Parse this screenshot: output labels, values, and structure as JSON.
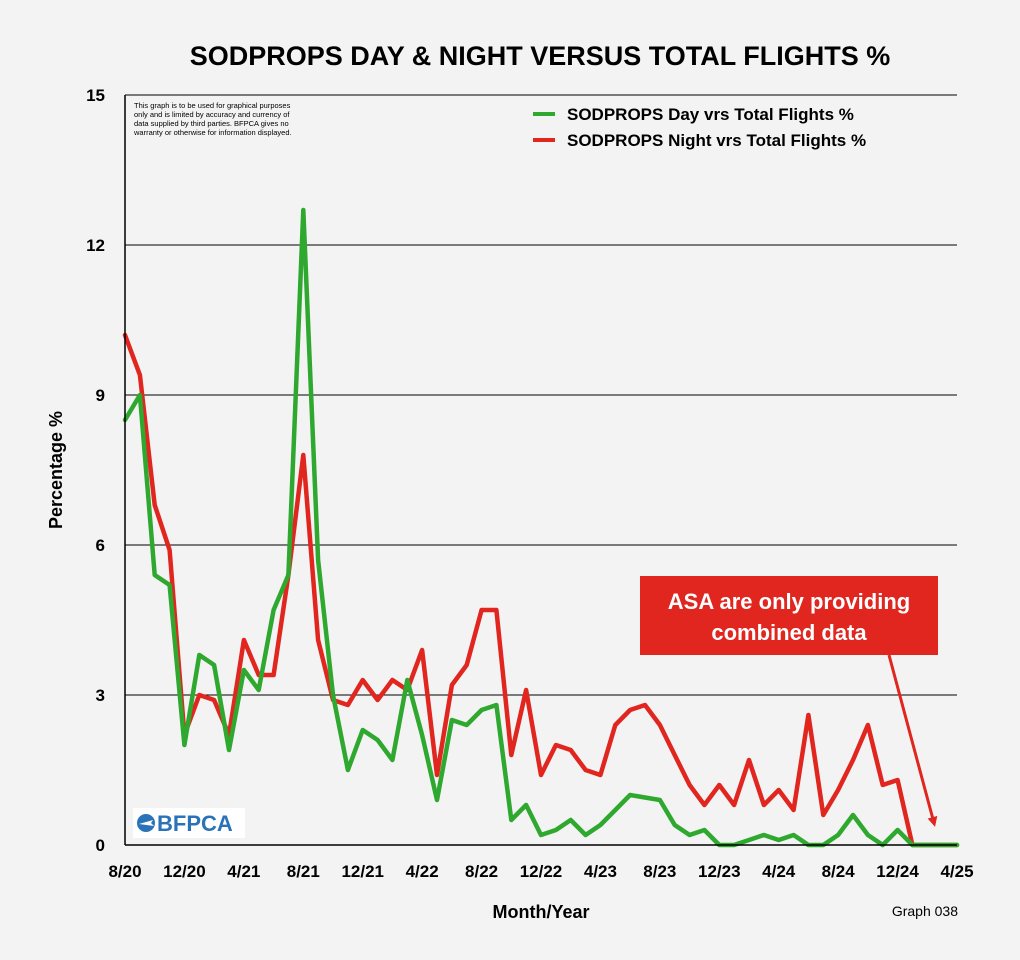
{
  "chart_data": {
    "type": "line",
    "title": "SODPROPS DAY & NIGHT VERSUS TOTAL FLIGHTS %",
    "xlabel": "Month/Year",
    "ylabel": "Percentage %",
    "ylim": [
      0,
      15
    ],
    "yticks": [
      "0",
      "3",
      "6",
      "9",
      "12",
      "15"
    ],
    "xticks": [
      {
        "label": "8/20",
        "i": 0
      },
      {
        "label": "12/20",
        "i": 4
      },
      {
        "label": "4/21",
        "i": 8
      },
      {
        "label": "8/21",
        "i": 12
      },
      {
        "label": "12/21",
        "i": 16
      },
      {
        "label": "4/22",
        "i": 20
      },
      {
        "label": "8/22",
        "i": 24
      },
      {
        "label": "12/22",
        "i": 28
      },
      {
        "label": "4/23",
        "i": 32
      },
      {
        "label": "8/23",
        "i": 36
      },
      {
        "label": "12/23",
        "i": 40
      },
      {
        "label": "4/24",
        "i": 44
      },
      {
        "label": "8/24",
        "i": 48
      },
      {
        "label": "12/24",
        "i": 52
      },
      {
        "label": "4/25",
        "i": 56
      }
    ],
    "grid": "horizontal",
    "legend_position": "top-right",
    "series": [
      {
        "name": "SODPROPS Day vrs Total Flights %",
        "color": "#2ea82e",
        "values": [
          8.5,
          9.0,
          5.4,
          5.2,
          2.0,
          3.8,
          3.6,
          1.9,
          3.5,
          3.1,
          4.7,
          5.4,
          12.7,
          5.7,
          3.0,
          1.5,
          2.3,
          2.1,
          1.7,
          3.3,
          2.2,
          0.9,
          2.5,
          2.4,
          2.7,
          2.8,
          0.5,
          0.8,
          0.2,
          0.3,
          0.5,
          0.2,
          0.4,
          0.7,
          1.0,
          0.95,
          0.9,
          0.4,
          0.2,
          0.3,
          0.0,
          0.0,
          0.1,
          0.2,
          0.1,
          0.2,
          0.0,
          0.0,
          0.2,
          0.6,
          0.2,
          0.0,
          0.3,
          0.0,
          0.0,
          0.0,
          0.0
        ]
      },
      {
        "name": "SODPROPS Night vrs Total Flights %",
        "color": "#e0261f",
        "values": [
          10.2,
          9.4,
          6.8,
          5.9,
          2.2,
          3.0,
          2.9,
          2.2,
          4.1,
          3.4,
          3.4,
          5.4,
          7.8,
          4.1,
          2.9,
          2.8,
          3.3,
          2.9,
          3.3,
          3.1,
          3.9,
          1.4,
          3.2,
          3.6,
          4.7,
          4.7,
          1.8,
          3.1,
          1.4,
          2.0,
          1.9,
          1.5,
          1.4,
          2.4,
          2.7,
          2.8,
          2.4,
          1.8,
          1.2,
          0.8,
          1.2,
          0.8,
          1.7,
          0.8,
          1.1,
          0.7,
          2.6,
          0.6,
          1.1,
          1.7,
          2.4,
          1.2,
          1.3,
          0.0,
          0.0,
          0.0,
          0.0
        ]
      }
    ],
    "annotations": {
      "disclaimer": [
        "This graph is to be used for graphical purposes",
        "only and is limited by accuracy and currency of",
        "data supplied by third parties. BFPCA gives no",
        "warranty or otherwise for information displayed."
      ],
      "callout_lines": [
        "ASA are only providing",
        "combined data"
      ],
      "callout_color": "#e0261f",
      "logo": "BFPCA",
      "graph_id": "Graph 038"
    }
  }
}
